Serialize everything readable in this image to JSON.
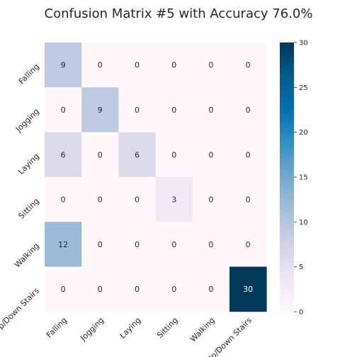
{
  "chart_data": {
    "type": "heatmap",
    "title": "Confusion Matrix #5 with Accuracy 76.0%",
    "row_labels": [
      "Falling",
      "Jogging",
      "Laying",
      "Sitting",
      "Walking",
      "Up/Down Stairs"
    ],
    "col_labels": [
      "Falling",
      "Jogging",
      "Laying",
      "Sitting",
      "Walking",
      "Up/Down Stairs"
    ],
    "values": [
      [
        9,
        0,
        0,
        0,
        0,
        0
      ],
      [
        0,
        9,
        0,
        0,
        0,
        0
      ],
      [
        6,
        0,
        6,
        0,
        0,
        0
      ],
      [
        0,
        0,
        0,
        3,
        0,
        0
      ],
      [
        12,
        0,
        0,
        0,
        0,
        0
      ],
      [
        0,
        0,
        0,
        0,
        0,
        30
      ]
    ],
    "colorbar": {
      "range": [
        0,
        30
      ],
      "ticks": [
        "0",
        "5",
        "10",
        "15",
        "20",
        "25",
        "30"
      ],
      "colormap": "PuBu",
      "colors": [
        "#fff7fb",
        "#ece7f2",
        "#d0d1e6",
        "#a6bddb",
        "#74a9cf",
        "#3690c0",
        "#0570b0",
        "#045a8d",
        "#023858"
      ]
    },
    "grid": false,
    "legend": "colorbar-right"
  }
}
